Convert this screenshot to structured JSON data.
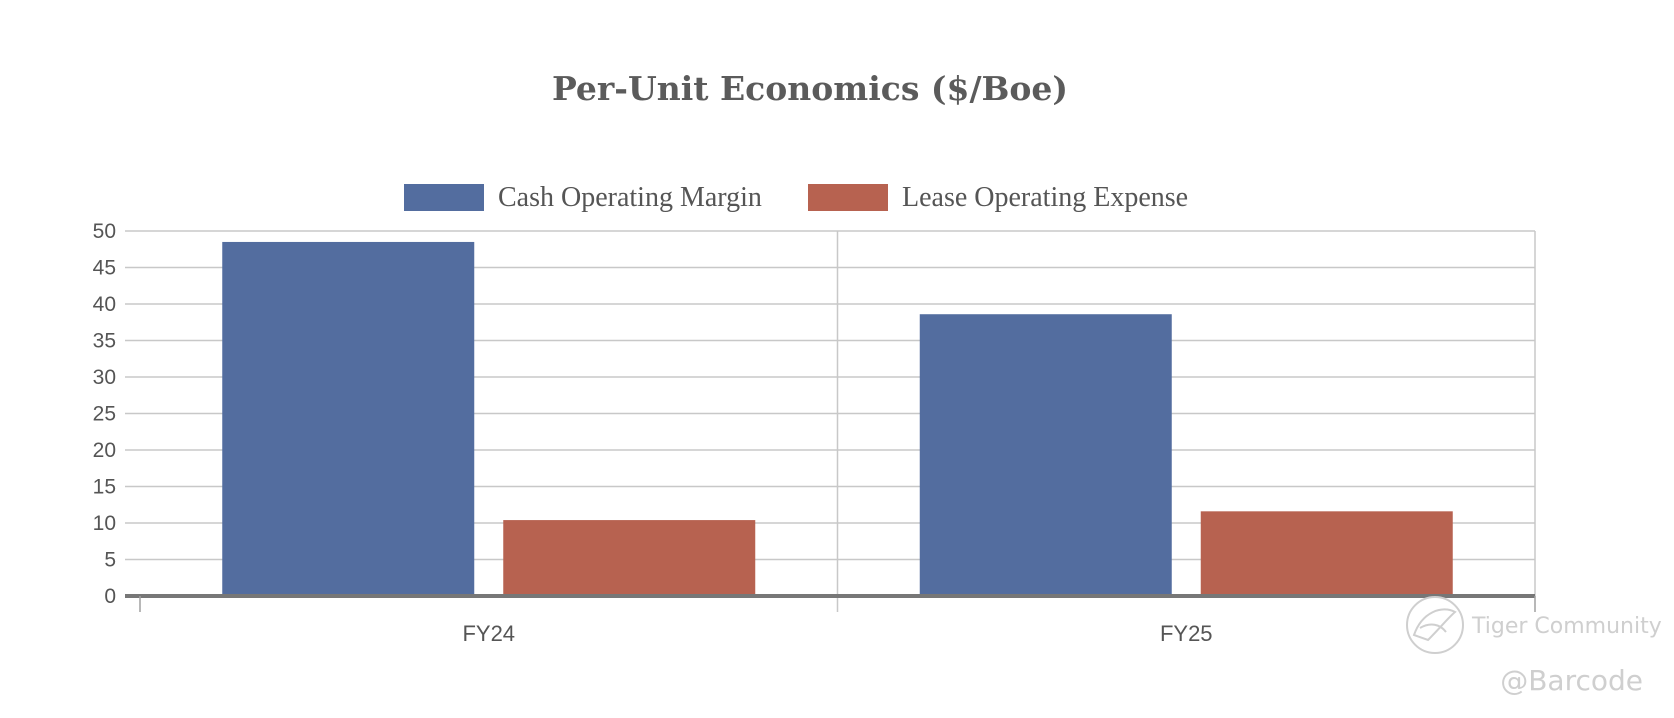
{
  "chart_data": {
    "type": "bar",
    "title": "Per-Unit Economics ($/Boe)",
    "categories": [
      "FY24",
      "FY25"
    ],
    "series": [
      {
        "name": "Cash Operating Margin",
        "color": "#536d9f",
        "values": [
          48.5,
          38.6
        ]
      },
      {
        "name": "Lease Operating Expense",
        "color": "#b76250",
        "values": [
          10.4,
          11.6
        ]
      }
    ],
    "yticks": [
      "0",
      "5",
      "10",
      "15",
      "20",
      "25",
      "30",
      "35",
      "40",
      "45",
      "50"
    ],
    "ylim": [
      0,
      50
    ],
    "xlabel": "",
    "ylabel": "",
    "grid": true,
    "legend": "top-center"
  },
  "watermark": {
    "brand": "Tiger Community",
    "handle": "@Barcode",
    "logo_icon": "tiger-community-logo-icon"
  }
}
